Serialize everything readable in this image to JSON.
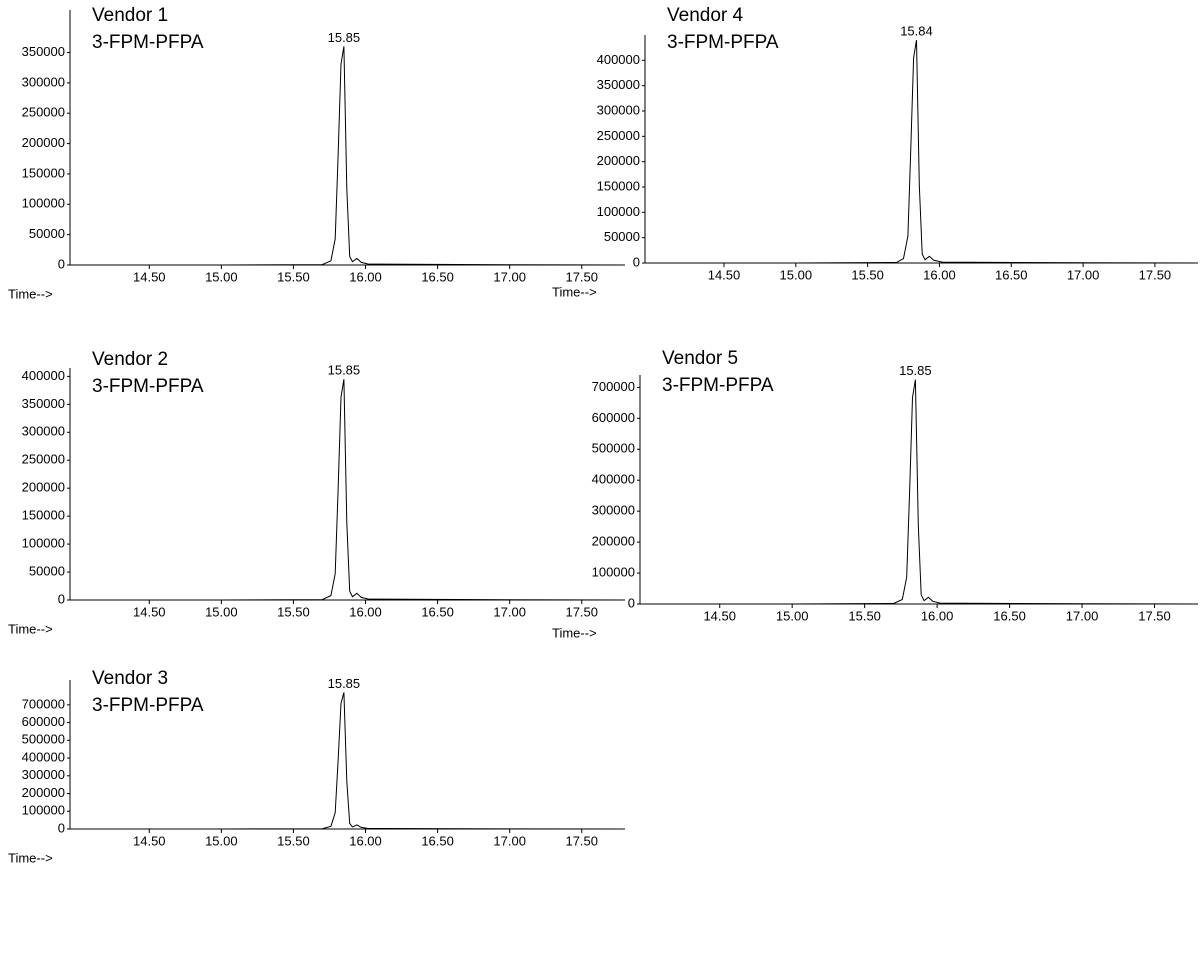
{
  "chart_data": [
    {
      "type": "line",
      "title": "Vendor 1",
      "subtitle": "3-FPM-PFPA",
      "xlabel": "Time-->",
      "color": "#000000",
      "x": [
        13.95,
        15.0,
        15.7,
        15.76,
        15.79,
        15.81,
        15.83,
        15.85,
        15.87,
        15.89,
        15.91,
        15.94,
        15.97,
        16.02,
        17.0,
        17.8
      ],
      "values": [
        0,
        0,
        700,
        7000,
        43000,
        180000,
        331000,
        360000,
        126000,
        14000,
        5400,
        10800,
        4300,
        1400,
        400,
        0
      ],
      "annotations": [
        {
          "text": "15.85",
          "x": 15.85
        }
      ],
      "xlim": [
        13.95,
        17.8
      ],
      "ylim": [
        0,
        420000
      ],
      "xticks": [
        {
          "value": 14.5,
          "label": "14.50"
        },
        {
          "value": 15,
          "label": "15.00"
        },
        {
          "value": 15.5,
          "label": "15.50"
        },
        {
          "value": 16,
          "label": "16.00"
        },
        {
          "value": 16.5,
          "label": "16.50"
        },
        {
          "value": 17,
          "label": "17.00"
        },
        {
          "value": 17.5,
          "label": "17.50"
        }
      ],
      "yticks": [
        0,
        50000,
        100000,
        150000,
        200000,
        250000,
        300000,
        350000
      ]
    },
    {
      "type": "line",
      "title": "Vendor 4",
      "subtitle": "3-FPM-PFPA",
      "xlabel": "Time-->",
      "color": "#000000",
      "x": [
        13.95,
        15.0,
        15.7,
        15.75,
        15.78,
        15.8,
        15.82,
        15.84,
        15.86,
        15.88,
        15.9,
        15.93,
        15.96,
        16.02,
        17.0,
        17.8
      ],
      "values": [
        0,
        0,
        900,
        8800,
        53000,
        220000,
        405000,
        440000,
        154000,
        17600,
        6600,
        13200,
        5300,
        1800,
        400,
        0
      ],
      "annotations": [
        {
          "text": "15.84",
          "x": 15.84
        }
      ],
      "xlim": [
        13.95,
        17.8
      ],
      "ylim": [
        0,
        450000
      ],
      "xticks": [
        {
          "value": 14.5,
          "label": "14.50"
        },
        {
          "value": 15,
          "label": "15.00"
        },
        {
          "value": 15.5,
          "label": "15.50"
        },
        {
          "value": 16,
          "label": "16.00"
        },
        {
          "value": 16.5,
          "label": "16.50"
        },
        {
          "value": 17,
          "label": "17.00"
        },
        {
          "value": 17.5,
          "label": "17.50"
        }
      ],
      "yticks": [
        0,
        50000,
        100000,
        150000,
        200000,
        250000,
        300000,
        350000,
        400000
      ]
    },
    {
      "type": "line",
      "title": "Vendor 2",
      "subtitle": "3-FPM-PFPA",
      "xlabel": "Time-->",
      "color": "#000000",
      "x": [
        13.95,
        15.0,
        15.7,
        15.76,
        15.79,
        15.81,
        15.83,
        15.85,
        15.87,
        15.89,
        15.91,
        15.94,
        15.97,
        16.02,
        17.0,
        17.8
      ],
      "values": [
        0,
        0,
        800,
        7900,
        47000,
        197000,
        363000,
        395000,
        138000,
        15800,
        5900,
        11900,
        4700,
        1600,
        400,
        0
      ],
      "annotations": [
        {
          "text": "15.85",
          "x": 15.85
        }
      ],
      "xlim": [
        13.95,
        17.8
      ],
      "ylim": [
        0,
        415000
      ],
      "xticks": [
        {
          "value": 14.5,
          "label": "14.50"
        },
        {
          "value": 15,
          "label": "15.00"
        },
        {
          "value": 15.5,
          "label": "15.50"
        },
        {
          "value": 16,
          "label": "16.00"
        },
        {
          "value": 16.5,
          "label": "16.50"
        },
        {
          "value": 17,
          "label": "17.00"
        },
        {
          "value": 17.5,
          "label": "17.50"
        }
      ],
      "yticks": [
        0,
        50000,
        100000,
        150000,
        200000,
        250000,
        300000,
        350000,
        400000
      ]
    },
    {
      "type": "line",
      "title": "Vendor 5",
      "subtitle": "3-FPM-PFPA",
      "xlabel": "Time-->",
      "color": "#000000",
      "x": [
        13.95,
        15.0,
        15.7,
        15.76,
        15.79,
        15.81,
        15.83,
        15.85,
        15.87,
        15.89,
        15.91,
        15.94,
        15.97,
        16.02,
        17.0,
        17.8
      ],
      "values": [
        0,
        0,
        1500,
        14500,
        87000,
        362000,
        667000,
        725000,
        254000,
        29000,
        10900,
        21800,
        8700,
        2900,
        700,
        0
      ],
      "annotations": [
        {
          "text": "15.85",
          "x": 15.85
        }
      ],
      "xlim": [
        13.95,
        17.8
      ],
      "ylim": [
        0,
        740000
      ],
      "xticks": [
        {
          "value": 14.5,
          "label": "14.50"
        },
        {
          "value": 15,
          "label": "15.00"
        },
        {
          "value": 15.5,
          "label": "15.50"
        },
        {
          "value": 16,
          "label": "16.00"
        },
        {
          "value": 16.5,
          "label": "16.50"
        },
        {
          "value": 17,
          "label": "17.00"
        },
        {
          "value": 17.5,
          "label": "17.50"
        }
      ],
      "yticks": [
        0,
        100000,
        200000,
        300000,
        400000,
        500000,
        600000,
        700000
      ]
    },
    {
      "type": "line",
      "title": "Vendor 3",
      "subtitle": "3-FPM-PFPA",
      "xlabel": "Time-->",
      "color": "#000000",
      "x": [
        13.95,
        15.0,
        15.7,
        15.76,
        15.79,
        15.81,
        15.83,
        15.85,
        15.87,
        15.89,
        15.91,
        15.94,
        15.97,
        16.02,
        17.0,
        17.8
      ],
      "values": [
        0,
        0,
        1500,
        15400,
        92000,
        385000,
        708000,
        770000,
        270000,
        30800,
        11600,
        23100,
        9200,
        3100,
        800,
        0
      ],
      "annotations": [
        {
          "text": "15.85",
          "x": 15.85
        }
      ],
      "xlim": [
        13.95,
        17.8
      ],
      "ylim": [
        0,
        840000
      ],
      "xticks": [
        {
          "value": 14.5,
          "label": "14.50"
        },
        {
          "value": 15,
          "label": "15.00"
        },
        {
          "value": 15.5,
          "label": "15.50"
        },
        {
          "value": 16,
          "label": "16.00"
        },
        {
          "value": 16.5,
          "label": "16.50"
        },
        {
          "value": 17,
          "label": "17.00"
        },
        {
          "value": 17.5,
          "label": "17.50"
        }
      ],
      "yticks": [
        0,
        100000,
        200000,
        300000,
        400000,
        500000,
        600000,
        700000
      ]
    }
  ]
}
